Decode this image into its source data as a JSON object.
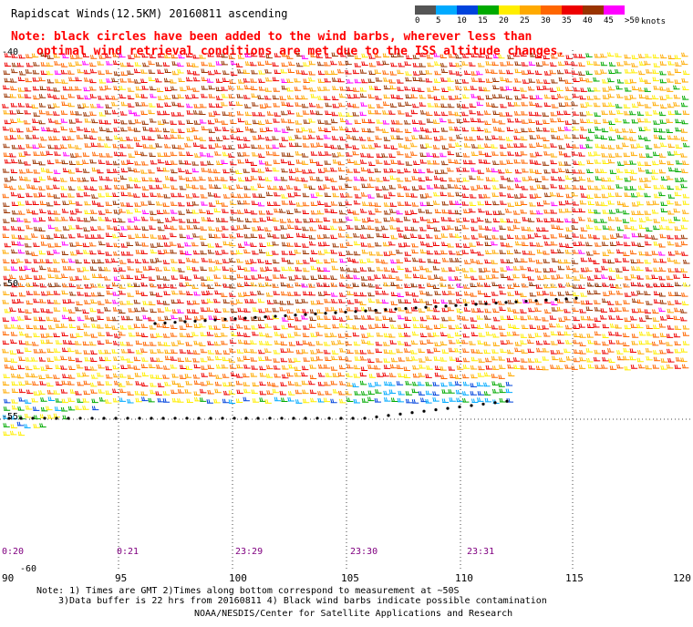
{
  "title": "Rapidscat Winds(12.5KM) 20160811 ascending",
  "note_line1": "Note: black circles have been added to the wind barbs, wherever less than",
  "note_line2": "optimal wind retrieval conditions are met due to the ISS altitude changes.",
  "legend": {
    "labels": [
      "0",
      "5",
      "10",
      "15",
      "20",
      "25",
      "30",
      "35",
      "40",
      "45",
      ">50"
    ],
    "unit": "knots",
    "colors": [
      "#555555",
      "#00aaff",
      "#0044dd",
      "#00aa00",
      "#ffee00",
      "#ffaa00",
      "#ff6600",
      "#ee0000",
      "#993300",
      "#ff00ff",
      "#550088"
    ]
  },
  "map": {
    "lon_labels": [
      "90",
      "95",
      "100",
      "105",
      "110",
      "115",
      "120"
    ],
    "lat_labels": [
      "-40",
      "-50",
      "-55",
      "-60"
    ],
    "time_labels": [
      "0:20",
      "0:21",
      "23:29",
      "23:30",
      "23:31"
    ]
  },
  "footer_line1": "Note: 1) Times are GMT 2)Times along bottom correspond to measurement at ~50S",
  "footer_line2": "3)Data buffer is 22 hrs from 20160811 4) Black wind barbs indicate possible contamination",
  "footer_line3": "NOAA/NESDIS/Center for Satellite Applications and Research"
}
